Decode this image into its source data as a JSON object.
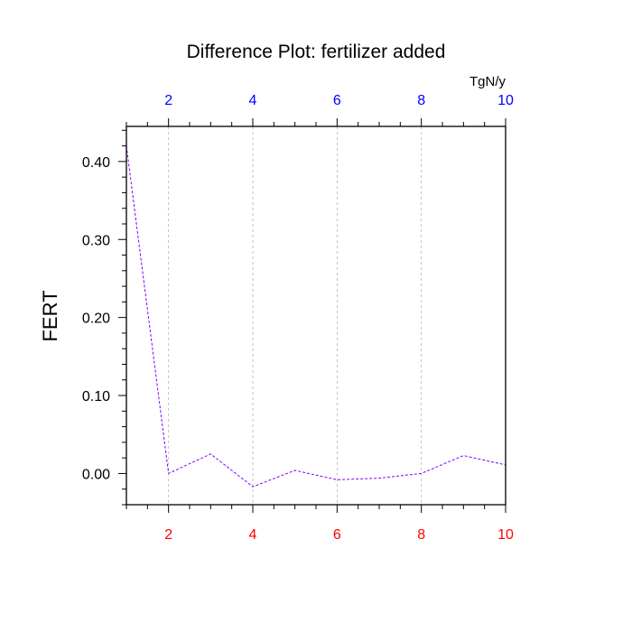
{
  "chart_data": {
    "type": "line",
    "title": "Difference Plot: fertilizer added",
    "ylabel": "FERT",
    "xlabel": "",
    "top_axis_unit": "TgN/y",
    "xlim": [
      1,
      10
    ],
    "ylim": [
      -0.04,
      0.445
    ],
    "x_ticks": [
      2,
      4,
      6,
      8,
      10
    ],
    "x_tick_labels": [
      "2",
      "4",
      "6",
      "8",
      "10"
    ],
    "y_ticks": [
      0.0,
      0.1,
      0.2,
      0.3,
      0.4
    ],
    "y_tick_labels": [
      "0.00",
      "0.10",
      "0.20",
      "0.30",
      "0.40"
    ],
    "grid": "vertical dashed at major x ticks",
    "x_tick_color_bottom": "#ff0000",
    "x_tick_color_top": "#0000ff",
    "series": [
      {
        "color": "#7f00ff",
        "line_style": "dashed",
        "x": [
          1,
          2,
          3,
          4,
          5,
          6,
          7,
          8,
          9,
          10
        ],
        "y": [
          0.42,
          0.0,
          0.025,
          -0.017,
          0.004,
          -0.008,
          -0.006,
          0.0,
          0.023,
          0.011
        ]
      }
    ]
  }
}
